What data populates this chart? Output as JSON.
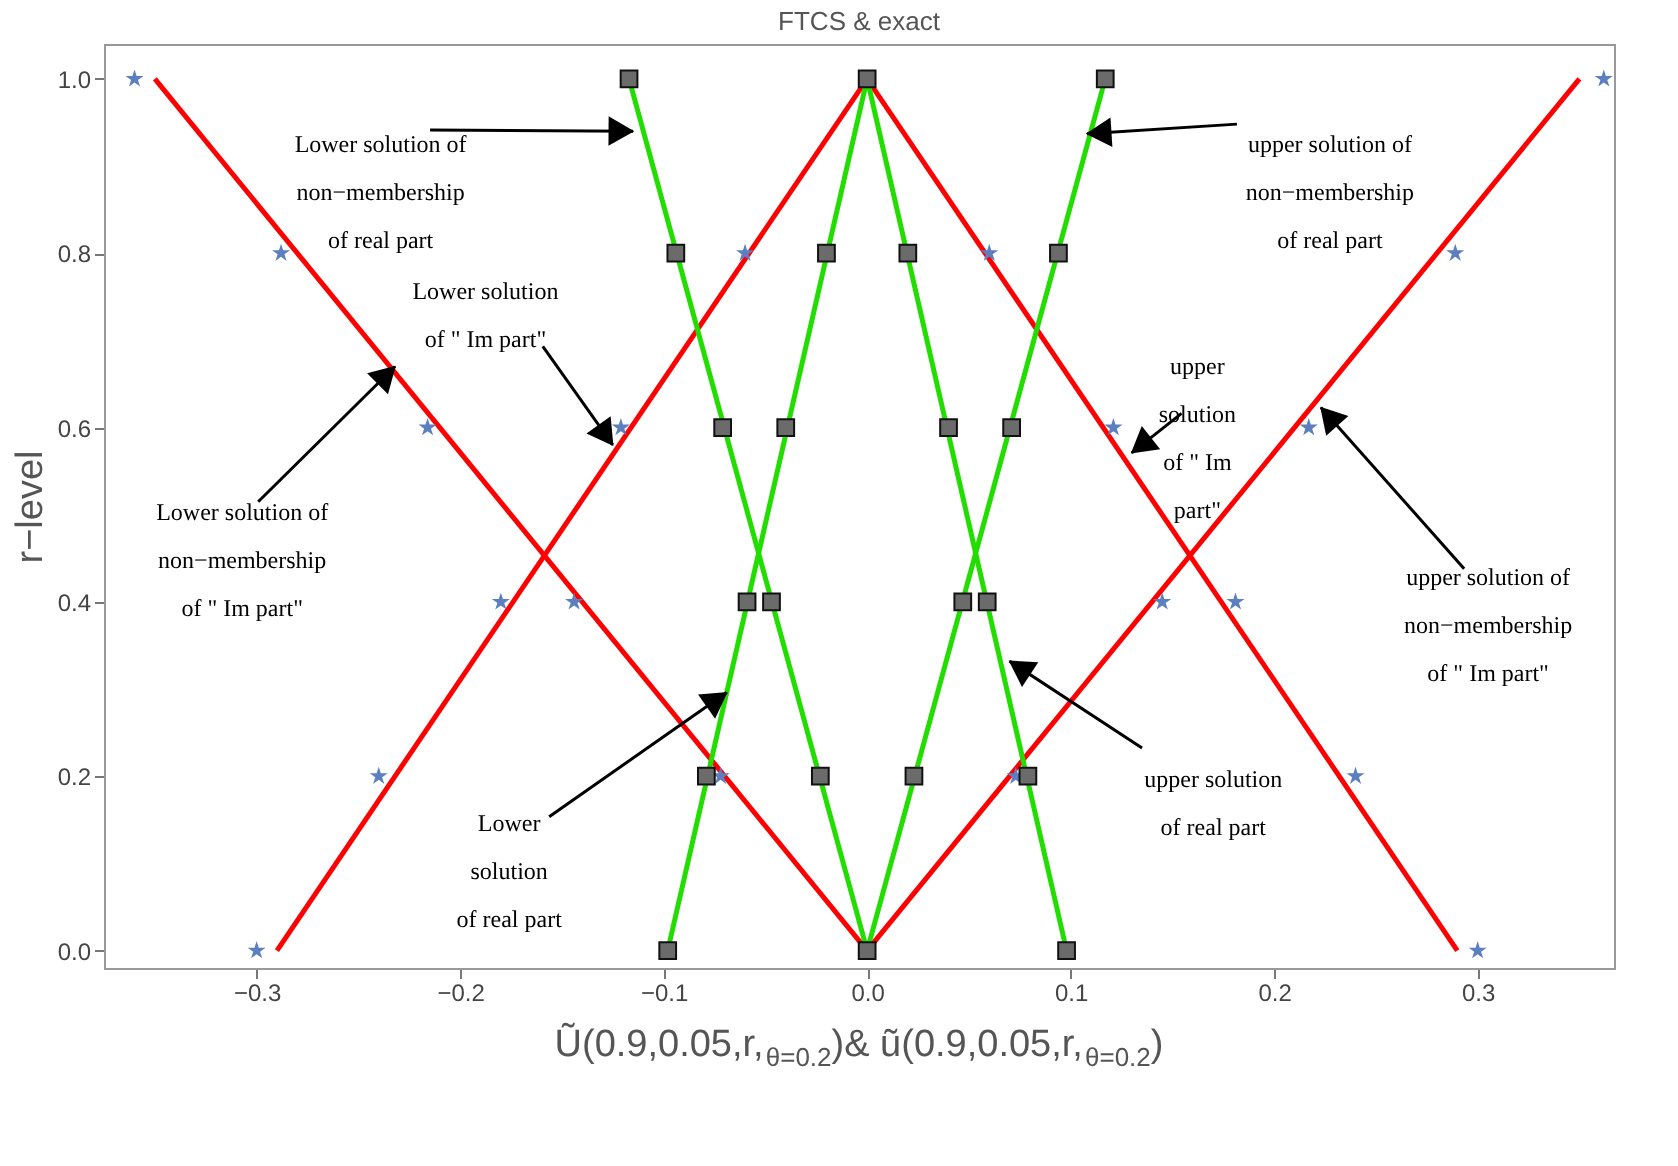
{
  "chart_data": {
    "type": "line",
    "title": "FTCS & exact",
    "xlabel": "Ũ(0.9,0.05,r,$_{θ=0.2}$)& ũ(0.9,0.05,r,$_{θ=0.2}$)",
    "ylabel": "r−level",
    "xlim": [
      -0.375,
      0.367
    ],
    "ylim": [
      -0.02,
      1.04
    ],
    "xticks": [
      {
        "value": -0.3,
        "label": "−0.3"
      },
      {
        "value": -0.2,
        "label": "−0.2"
      },
      {
        "value": -0.1,
        "label": "−0.1"
      },
      {
        "value": 0,
        "label": "0.0"
      },
      {
        "value": 0.1,
        "label": "0.1"
      },
      {
        "value": 0.2,
        "label": "0.2"
      },
      {
        "value": 0.3,
        "label": "0.3"
      }
    ],
    "yticks": [
      {
        "value": 0,
        "label": "0.0"
      },
      0.2,
      0.4,
      0.6,
      0.8,
      {
        "value": 1,
        "label": "1.0"
      }
    ],
    "grid": false,
    "series": [
      {
        "color": "#ff0000",
        "line_style": "solid",
        "x": [
          -0.35,
          0
        ],
        "values": [
          1,
          0
        ]
      },
      {
        "color": "#ff0000",
        "line_style": "solid",
        "x": [
          -0.29,
          0
        ],
        "values": [
          0,
          1
        ]
      },
      {
        "color": "#ff0000",
        "line_style": "solid",
        "x": [
          0,
          0.29
        ],
        "values": [
          1,
          0
        ]
      },
      {
        "color": "#ff0000",
        "line_style": "solid",
        "x": [
          0,
          0.35
        ],
        "values": [
          0,
          1
        ]
      },
      {
        "color": "#22dd00",
        "line_style": "solid",
        "x": [
          -0.117,
          0
        ],
        "values": [
          1,
          0
        ]
      },
      {
        "color": "#22dd00",
        "line_style": "solid",
        "x": [
          -0.098,
          0
        ],
        "values": [
          0,
          1
        ]
      },
      {
        "color": "#22dd00",
        "line_style": "solid",
        "x": [
          0,
          0.098
        ],
        "values": [
          1,
          0
        ]
      },
      {
        "color": "#22dd00",
        "line_style": "solid",
        "x": [
          0,
          0.117
        ],
        "values": [
          0,
          1
        ]
      },
      {
        "type": "scatter",
        "marker": "star",
        "color": "#5b7fbf",
        "x": [
          -0.36,
          -0.288,
          -0.06,
          -0.216,
          -0.121,
          -0.18,
          -0.144,
          -0.24,
          -0.072,
          -0.3,
          0.362,
          0.06,
          0.289,
          0.121,
          0.217,
          0.145,
          0.181,
          0.073,
          0.24,
          0.3
        ],
        "values": [
          1,
          0.8,
          0.8,
          0.6,
          0.6,
          0.4,
          0.4,
          0.2,
          0.2,
          0,
          1,
          0.8,
          0.8,
          0.6,
          0.6,
          0.4,
          0.4,
          0.2,
          0.2,
          0
        ]
      },
      {
        "type": "scatter",
        "marker": "square",
        "color": "#6b6b6b",
        "x": [
          -0.117,
          0,
          0.117,
          -0.094,
          -0.02,
          0.02,
          0.094,
          -0.071,
          -0.04,
          0.04,
          0.071,
          -0.059,
          -0.047,
          0.047,
          0.059,
          -0.079,
          -0.023,
          0.023,
          0.079,
          -0.098,
          0,
          0.098
        ],
        "values": [
          1,
          1,
          1,
          0.8,
          0.8,
          0.8,
          0.8,
          0.6,
          0.6,
          0.6,
          0.6,
          0.4,
          0.4,
          0.4,
          0.4,
          0.2,
          0.2,
          0.2,
          0.2,
          0,
          0,
          0
        ]
      }
    ],
    "annotations": [
      {
        "text": "Lower solution of\nnon−membership\nof   real part",
        "x": -0.115,
        "y": 0.94
      },
      {
        "text": "Lower solution\nof  \" Im part\"",
        "x": -0.125,
        "y": 0.58
      },
      {
        "text": "Lower solution of\nnon−membership\nof  \" Im part\"",
        "x": -0.232,
        "y": 0.67
      },
      {
        "text": "Lower\nsolution\nof real part",
        "x": -0.069,
        "y": 0.296
      },
      {
        "text": "upper solution of\nnon−membership\nof   real part",
        "x": 0.108,
        "y": 0.937
      },
      {
        "text": "upper\nsolution\nof  \" Im\npart\"",
        "x": 0.13,
        "y": 0.571
      },
      {
        "text": "upper solution of\nnon−membership\nof  \" Im part\"",
        "x": 0.223,
        "y": 0.623
      },
      {
        "text": "upper solution\nof real part",
        "x": 0.07,
        "y": 0.332
      }
    ]
  }
}
